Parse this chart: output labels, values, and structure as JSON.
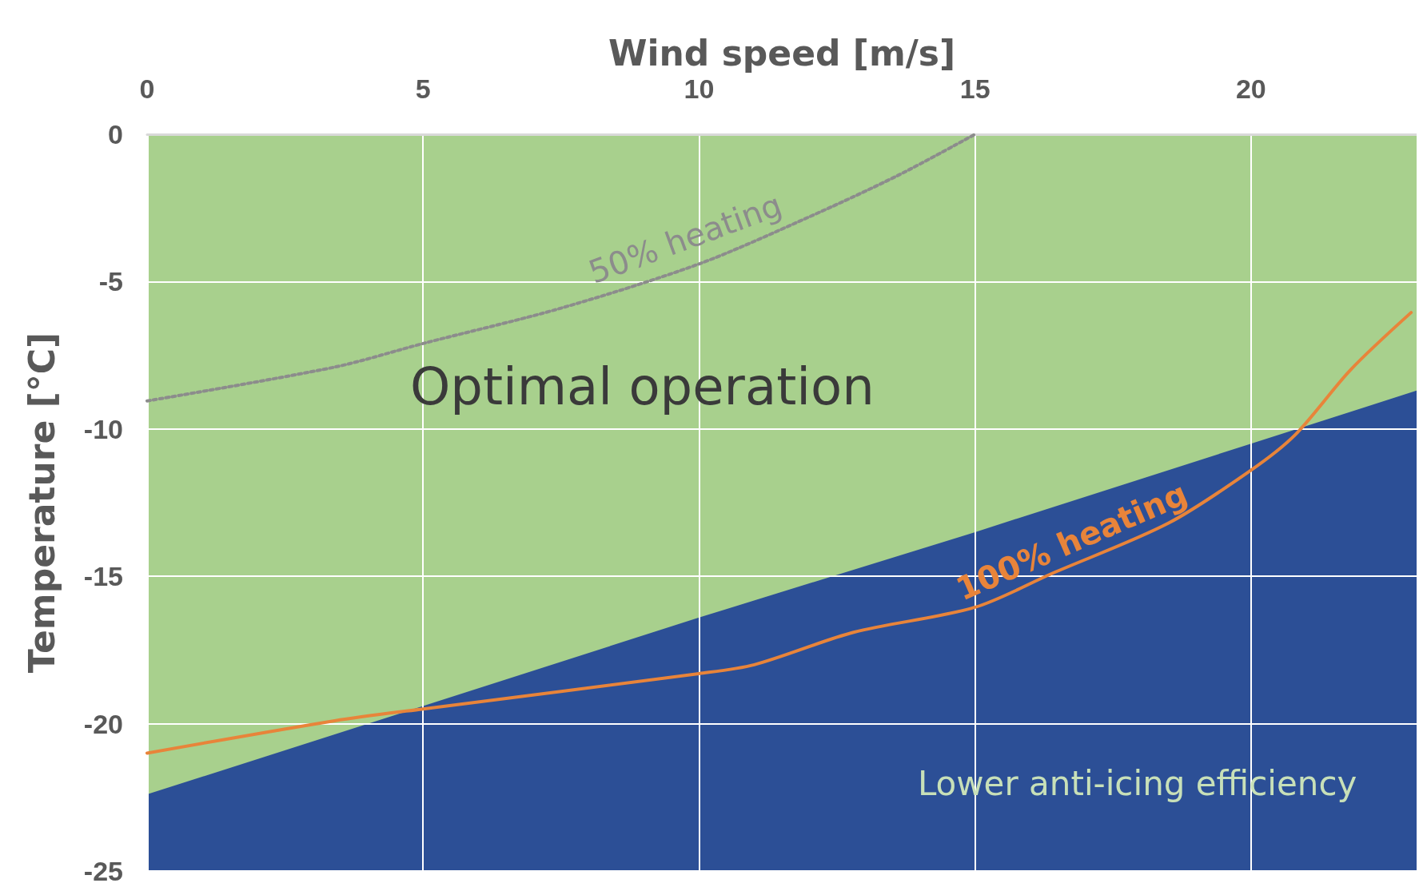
{
  "chart_data": {
    "type": "line",
    "xlabel": "Wind speed [m/s]",
    "ylabel": "Temperature [°C]",
    "xlim": [
      0,
      23
    ],
    "xticks": [
      0,
      5,
      10,
      15,
      20
    ],
    "ylim": [
      -25,
      0
    ],
    "yticks": [
      0,
      -5,
      -10,
      -15,
      -20,
      -25
    ],
    "grid": true,
    "legend": false,
    "marker": "none",
    "series": [
      {
        "type": "area",
        "color": "#a8d08d",
        "x": [
          0,
          5,
          10,
          15,
          20,
          23
        ],
        "values": [
          -22.4,
          -19.4,
          -16.4,
          -13.5,
          -10.5,
          -8.7
        ]
      },
      {
        "name": "50% heating",
        "color": "#8c8c8c",
        "line_style": "dotted",
        "x": [
          0,
          3.4,
          5,
          7.5,
          10,
          12,
          13.6,
          15
        ],
        "values": [
          -9.05,
          -7.9,
          -7.1,
          -5.9,
          -4.4,
          -2.8,
          -1.4,
          0
        ]
      },
      {
        "name": "100% heating",
        "color": "#e8843a",
        "line_style": "solid",
        "x": [
          0,
          3.4,
          5,
          10,
          11,
          12.8,
          15,
          16.4,
          18.5,
          20,
          20.8,
          21.8,
          22.9
        ],
        "values": [
          -21,
          -19.9,
          -19.5,
          -18.3,
          -18,
          -16.9,
          -16.05,
          -14.9,
          -13.2,
          -11.4,
          -10.2,
          -8,
          -6.05
        ]
      }
    ],
    "bands": [
      {
        "axis": "y",
        "from": -25,
        "to": 0,
        "color": "#2c4f96"
      }
    ],
    "annotations": [
      "Optimal operation",
      "Lower anti-icing efficiency"
    ]
  }
}
